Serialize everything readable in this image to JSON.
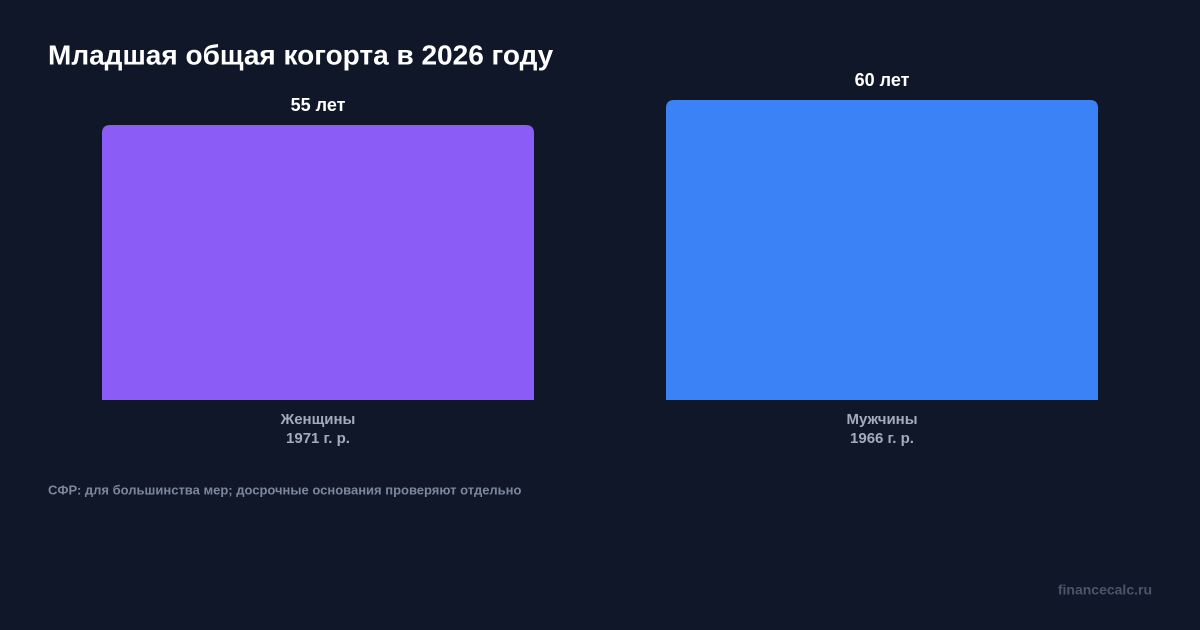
{
  "chart_data": {
    "type": "bar",
    "title": "Младшая общая когорта в 2026 году",
    "categories": [
      "Женщины",
      "Мужчины"
    ],
    "category_notes": [
      "1971 г. р.",
      "1966 г. р."
    ],
    "values": [
      55,
      60
    ],
    "value_labels": [
      "55 лет",
      "60 лет"
    ],
    "colors": [
      "#8b5cf6",
      "#3b82f6"
    ],
    "ylim": [
      0,
      60
    ],
    "footnote": "СФР: для большинства мер; досрочные основания проверяют отдельно",
    "watermark": "financecalc.ru"
  }
}
